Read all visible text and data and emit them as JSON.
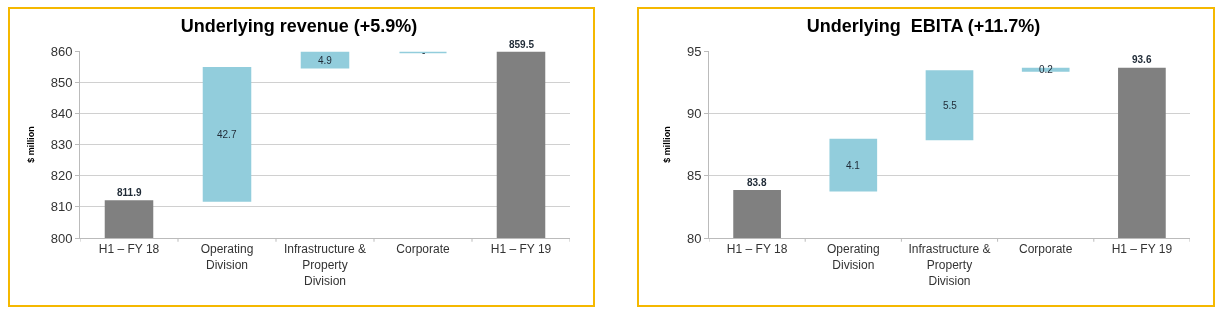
{
  "chart_data": [
    {
      "type": "bar",
      "title": "Underlying revenue (+5.9%)",
      "ylabel": "$ million",
      "categories": [
        "H1 – FY 18",
        "Operating Division",
        "Infrastructure & Property Division",
        "Corporate",
        "H1 – FY 19"
      ],
      "values": [
        811.9,
        42.7,
        4.9,
        0,
        859.5
      ],
      "base": [
        null,
        811.9,
        854.6,
        859.5,
        null
      ],
      "colors": [
        "#808080",
        "#92cddc",
        "#92cddc",
        "#92cddc",
        "#808080"
      ],
      "value_labels": [
        "811.9",
        "42.7",
        "4.9",
        "-",
        "859.5"
      ],
      "ylim": [
        800,
        860
      ],
      "yticks": [
        800,
        810,
        820,
        830,
        840,
        850,
        860
      ],
      "grid": "y"
    },
    {
      "type": "bar",
      "title": "Underlying  EBITA (+11.7%)",
      "ylabel": "$ million",
      "categories": [
        "H1 – FY 18",
        "Operating Division",
        "Infrastructure & Property Division",
        "Corporate",
        "H1 – FY 19"
      ],
      "values": [
        83.8,
        4.1,
        5.5,
        0.2,
        93.6
      ],
      "base": [
        null,
        83.8,
        87.9,
        93.4,
        null
      ],
      "colors": [
        "#808080",
        "#92cddc",
        "#92cddc",
        "#92cddc",
        "#808080"
      ],
      "value_labels": [
        "83.8",
        "4.1",
        "5.5",
        "0.2",
        "93.6"
      ],
      "ylim": [
        80,
        95
      ],
      "yticks": [
        80,
        85,
        90,
        95
      ],
      "grid": "y"
    }
  ]
}
